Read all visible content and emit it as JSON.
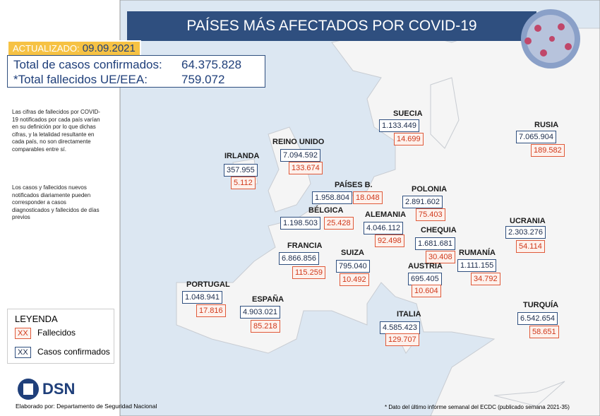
{
  "header": {
    "title": "PAÍSES MÁS AFECTADOS POR COVID-19",
    "updated_label": "ACTUALIZADO:",
    "updated_date": "09.09.2021"
  },
  "totals": [
    {
      "label": "Total de casos confirmados:",
      "value": "64.375.828"
    },
    {
      "label": "*Total fallecidos UE/EEA:",
      "value": "759.072"
    }
  ],
  "notes": [
    "Las cifras de fallecidos por COVID-19 notificados por cada país varían en su definición por lo que dichas cifras, y la letalidad resultante en cada país, no son directamente comparables entre sí.",
    "Los casos y fallecidos nuevos notificados diariamente pueden corresponder a casos diagnosticados y fallecidos de días previos"
  ],
  "legend": {
    "title": "LEYENDA",
    "items": [
      {
        "symbol": "XX",
        "label": "Fallecidos"
      },
      {
        "symbol": "XX",
        "label": "Casos confirmados"
      }
    ]
  },
  "countries": [
    {
      "name": "SUECIA",
      "cases": "1.133.449",
      "deaths": "14.699"
    },
    {
      "name": "RUSIA",
      "cases": "7.065.904",
      "deaths": "189.582"
    },
    {
      "name": "REINO UNIDO",
      "cases": "7.094.592",
      "deaths": "133.674"
    },
    {
      "name": "IRLANDA",
      "cases": "357.955",
      "deaths": "5.112"
    },
    {
      "name": "PAÍSES B.",
      "cases": "1.958.804",
      "deaths": "18.048"
    },
    {
      "name": "POLONIA",
      "cases": "2.891.602",
      "deaths": "75.403"
    },
    {
      "name": "BÉLGICA",
      "cases": "1.198.503",
      "deaths": "25.428"
    },
    {
      "name": "ALEMANIA",
      "cases": "4.046.112",
      "deaths": "92.498"
    },
    {
      "name": "CHEQUIA",
      "cases": "1.681.681",
      "deaths": "30.408"
    },
    {
      "name": "UCRANIA",
      "cases": "2.303.276",
      "deaths": "54.114"
    },
    {
      "name": "FRANCIA",
      "cases": "6.866.856",
      "deaths": "115.259"
    },
    {
      "name": "SUIZA",
      "cases": "795.040",
      "deaths": "10.492"
    },
    {
      "name": "RUMANÍA",
      "cases": "1.111.155",
      "deaths": "34.792"
    },
    {
      "name": "AUSTRIA",
      "cases": "695.405",
      "deaths": "10.604"
    },
    {
      "name": "PORTUGAL",
      "cases": "1.048.941",
      "deaths": "17.816"
    },
    {
      "name": "ESPAÑA",
      "cases": "4.903.021",
      "deaths": "85.218"
    },
    {
      "name": "TURQUÍA",
      "cases": "6.542.654",
      "deaths": "58.651"
    },
    {
      "name": "ITALIA",
      "cases": "4.585.423",
      "deaths": "129.707"
    }
  ],
  "footer": {
    "logo": "DSN",
    "credit": "Elaborado por: Departamento de Seguridad Nacional",
    "source": "* Dato del último informe semanal del ECDC (publicado semana 2021-35)"
  }
}
